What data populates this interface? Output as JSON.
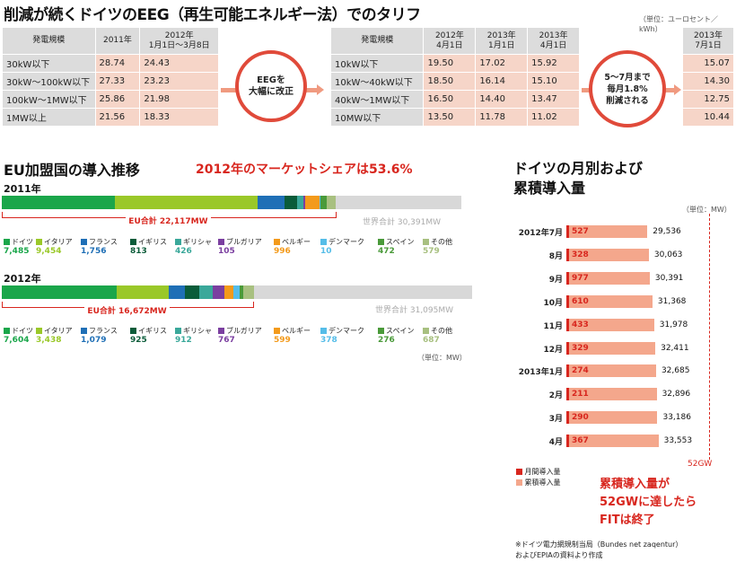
{
  "header": {
    "title": "削減が続くドイツのEEG（再生可能エネルギー法）でのタリフ",
    "unit": "（単位：ユーロセント／kWh）"
  },
  "tariff_table1": {
    "headers": [
      "発電規模",
      "2011年",
      "2012年\n1月1日～3月8日"
    ],
    "rows": [
      {
        "label": "30kW以下",
        "v2011": "28.74",
        "v2012": "24.43"
      },
      {
        "label": "30kW～100kW以下",
        "v2011": "27.33",
        "v2012": "23.23"
      },
      {
        "label": "100kW～1MW以下",
        "v2011": "25.86",
        "v2012": "21.98"
      },
      {
        "label": "1MW以上",
        "v2011": "21.56",
        "v2012": "18.33"
      }
    ]
  },
  "circle1": {
    "text": "EEGを\n大幅に改正"
  },
  "tariff_table2": {
    "headers": [
      "発電規模",
      "2012年\n4月1日",
      "2013年\n1月1日",
      "2013年\n4月1日"
    ],
    "rows": [
      {
        "label": "10kW以下",
        "a": "19.50",
        "b": "17.02",
        "c": "15.92"
      },
      {
        "label": "10kW～40kW以下",
        "a": "18.50",
        "b": "16.14",
        "c": "15.10"
      },
      {
        "label": "40kW～1MW以下",
        "a": "16.50",
        "b": "14.40",
        "c": "13.47"
      },
      {
        "label": "10MW以下",
        "a": "13.50",
        "b": "11.78",
        "c": "11.02"
      }
    ]
  },
  "circle2": {
    "text": "5～7月まで\n毎月1.8%\n削減される"
  },
  "tariff_table3": {
    "header": "2013年\n7月1日",
    "values": [
      "15.07",
      "14.30",
      "12.75",
      "10.44"
    ]
  },
  "eu_section": {
    "title": "EU加盟国の導入推移",
    "subtitle": "2012年のマーケットシェアは53.6%",
    "unit": "（単位：MW）"
  },
  "monthly_section": {
    "title_line1": "ドイツの月別および",
    "title_line2": "累積導入量",
    "unit": "（単位：MW）",
    "legend_monthly": "月間導入量",
    "legend_cumulative": "累積導入量",
    "note_line1": "累積導入量が",
    "note_line2": "52GWに達したら",
    "note_line3": "FITは終了",
    "limit_label": "52GW",
    "source_line1": "※ドイツ電力網規制当局（Bundes net zaqentur）",
    "source_line2": "およびEPIAの資料より作成"
  },
  "colors": {
    "germany": "#1aa64a",
    "italy": "#9ac829",
    "france": "#1f6fb6",
    "uk": "#0a5c3a",
    "greece": "#3aa89a",
    "bulgaria": "#7b3fa0",
    "belgium": "#f39a1b",
    "denmark": "#55bde8",
    "spain": "#4a9a3a",
    "other": "#a8c080",
    "world": "#d8d8d8",
    "accent": "#d8261e",
    "tariff": "#f6d5c8"
  },
  "chart_data": [
    {
      "type": "bar",
      "stacked": true,
      "orientation": "horizontal",
      "title": "2011年",
      "unit": "MW",
      "world_total_label": "世界合計 30,391MW",
      "world_total": 30391,
      "eu_total_label": "EU合計 22,117MW",
      "eu_total": 22117,
      "series": [
        {
          "name": "ドイツ",
          "key": "germany",
          "value": 7485,
          "label": "7,485"
        },
        {
          "name": "イタリア",
          "key": "italy",
          "value": 9454,
          "label": "9,454"
        },
        {
          "name": "フランス",
          "key": "france",
          "value": 1756,
          "label": "1,756"
        },
        {
          "name": "イギリス",
          "key": "uk",
          "value": 813,
          "label": "813"
        },
        {
          "name": "ギリシャ",
          "key": "greece",
          "value": 426,
          "label": "426"
        },
        {
          "name": "ブルガリア",
          "key": "bulgaria",
          "value": 105,
          "label": "105"
        },
        {
          "name": "ベルギー",
          "key": "belgium",
          "value": 996,
          "label": "996"
        },
        {
          "name": "デンマーク",
          "key": "denmark",
          "value": 10,
          "label": "10"
        },
        {
          "name": "スペイン",
          "key": "spain",
          "value": 472,
          "label": "472"
        },
        {
          "name": "その他",
          "key": "other",
          "value": 579,
          "label": "579"
        }
      ]
    },
    {
      "type": "bar",
      "stacked": true,
      "orientation": "horizontal",
      "title": "2012年",
      "unit": "MW",
      "world_total_label": "世界合計 31,095MW",
      "world_total": 31095,
      "eu_total_label": "EU合計 16,672MW",
      "eu_total": 16672,
      "series": [
        {
          "name": "ドイツ",
          "key": "germany",
          "value": 7604,
          "label": "7,604"
        },
        {
          "name": "イタリア",
          "key": "italy",
          "value": 3438,
          "label": "3,438"
        },
        {
          "name": "フランス",
          "key": "france",
          "value": 1079,
          "label": "1,079"
        },
        {
          "name": "イギリス",
          "key": "uk",
          "value": 925,
          "label": "925"
        },
        {
          "name": "ギリシャ",
          "key": "greece",
          "value": 912,
          "label": "912"
        },
        {
          "name": "ブルガリア",
          "key": "bulgaria",
          "value": 767,
          "label": "767"
        },
        {
          "name": "ベルギー",
          "key": "belgium",
          "value": 599,
          "label": "599"
        },
        {
          "name": "デンマーク",
          "key": "denmark",
          "value": 378,
          "label": "378"
        },
        {
          "name": "スペイン",
          "key": "spain",
          "value": 276,
          "label": "276"
        },
        {
          "name": "その他",
          "key": "other",
          "value": 687,
          "label": "687"
        }
      ]
    },
    {
      "type": "bar",
      "orientation": "horizontal",
      "unit": "MW",
      "limit": 52000,
      "categories": [
        "2012年7月",
        "8月",
        "9月",
        "10月",
        "11月",
        "12月",
        "2013年1月",
        "2月",
        "3月",
        "4月"
      ],
      "series": [
        {
          "name": "月間導入量",
          "values": [
            527,
            328,
            977,
            610,
            433,
            329,
            274,
            211,
            290,
            367
          ]
        },
        {
          "name": "累積導入量",
          "values": [
            29536,
            30063,
            30391,
            31368,
            31978,
            32411,
            32685,
            32896,
            33186,
            33553
          ]
        }
      ],
      "cum_labels": [
        "29,536",
        "30,063",
        "30,391",
        "31,368",
        "31,978",
        "32,411",
        "32,685",
        "32,896",
        "33,186",
        "33,553"
      ]
    }
  ]
}
